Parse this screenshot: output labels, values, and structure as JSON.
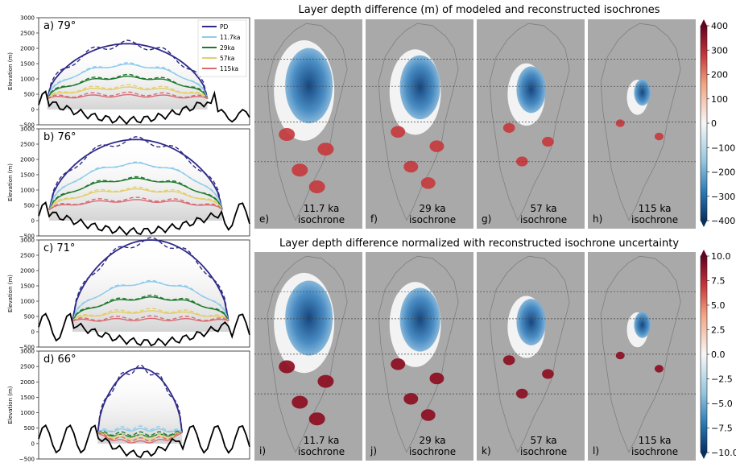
{
  "profiles": [
    {
      "label": "a)  79°",
      "ylabel": "Elevation (m)"
    },
    {
      "label": "b)  76°",
      "ylabel": "Elevation (m)"
    },
    {
      "label": "c)  71°",
      "ylabel": "Elevation (m)"
    },
    {
      "label": "d)  66°",
      "ylabel": "Elevation (m)"
    }
  ],
  "yticks": [
    "3000",
    "2500",
    "2000",
    "1500",
    "1000",
    "500",
    "0",
    "−500"
  ],
  "legend": [
    {
      "name": "PD",
      "color": "#2e2a88"
    },
    {
      "name": "11.7ka",
      "color": "#8ecbec"
    },
    {
      "name": "29ka",
      "color": "#1e7a2e"
    },
    {
      "name": "57ka",
      "color": "#e3cf6c"
    },
    {
      "name": "115ka",
      "color": "#d96b74"
    }
  ],
  "maps": {
    "top_title": "Layer depth difference (m) of modeled and reconstructed isochrones",
    "bottom_title": "Layer depth difference normalized with reconstructed isochrone uncertainty",
    "top_panels": [
      {
        "letter": "e)",
        "age": "11.7 ka",
        "word": "isochrone"
      },
      {
        "letter": "f)",
        "age": "29 ka",
        "word": "isochrone"
      },
      {
        "letter": "g)",
        "age": "57 ka",
        "word": "isochrone"
      },
      {
        "letter": "h)",
        "age": "115 ka",
        "word": "isochrone"
      }
    ],
    "bottom_panels": [
      {
        "letter": "i)",
        "age": "11.7 ka",
        "word": "isochrone"
      },
      {
        "letter": "j)",
        "age": "29 ka",
        "word": "isochrone"
      },
      {
        "letter": "k)",
        "age": "57 ka",
        "word": "isochrone"
      },
      {
        "letter": "l)",
        "age": "115 ka",
        "word": "isochrone"
      }
    ],
    "top_cbar_ticks": [
      "400",
      "300",
      "200",
      "100",
      "0",
      "−100",
      "−200",
      "−300",
      "−400"
    ],
    "bottom_cbar_ticks": [
      "10.0",
      "7.5",
      "5.0",
      "2.5",
      "0.0",
      "−2.5",
      "−5.0",
      "−7.5",
      "−10.0"
    ]
  },
  "chart_data": [
    {
      "type": "line",
      "panel": "a",
      "ylim": [
        -500,
        3000
      ],
      "series": [
        {
          "name": "PD",
          "peak": 2150
        },
        {
          "name": "11.7ka",
          "peak": 1450
        },
        {
          "name": "29ka",
          "peak": 1050
        },
        {
          "name": "57ka",
          "peak": 700
        },
        {
          "name": "115ka",
          "peak": 450
        }
      ]
    },
    {
      "type": "line",
      "panel": "b",
      "ylim": [
        -500,
        3000
      ],
      "series": [
        {
          "name": "PD",
          "peak": 2650
        },
        {
          "name": "11.7ka",
          "peak": 1850
        },
        {
          "name": "29ka",
          "peak": 1350
        },
        {
          "name": "57ka",
          "peak": 1000
        },
        {
          "name": "115ka",
          "peak": 650
        }
      ]
    },
    {
      "type": "line",
      "panel": "c",
      "ylim": [
        -500,
        3000
      ],
      "series": [
        {
          "name": "PD",
          "peak": 3000
        },
        {
          "name": "11.7ka",
          "peak": 1600
        },
        {
          "name": "29ka",
          "peak": 1100
        },
        {
          "name": "57ka",
          "peak": 650
        },
        {
          "name": "115ka",
          "peak": 400
        }
      ]
    },
    {
      "type": "line",
      "panel": "d",
      "ylim": [
        -500,
        3000
      ],
      "series": [
        {
          "name": "PD",
          "peak": 2450
        },
        {
          "name": "11.7ka",
          "peak": 450
        },
        {
          "name": "29ka",
          "peak": 250
        },
        {
          "name": "57ka",
          "peak": 150
        },
        {
          "name": "115ka",
          "peak": 50
        }
      ]
    },
    {
      "type": "heatmap",
      "title": "Layer depth difference (m) of modeled and reconstructed isochrones",
      "colorbar": [
        -400,
        400
      ],
      "panels": [
        "11.7 ka isochrone",
        "29 ka isochrone",
        "57 ka isochrone",
        "115 ka isochrone"
      ]
    },
    {
      "type": "heatmap",
      "title": "Layer depth difference normalized with reconstructed isochrone uncertainty",
      "colorbar": [
        -10,
        10
      ],
      "panels": [
        "11.7 ka isochrone",
        "29 ka isochrone",
        "57 ka isochrone",
        "115 ka isochrone"
      ]
    }
  ]
}
